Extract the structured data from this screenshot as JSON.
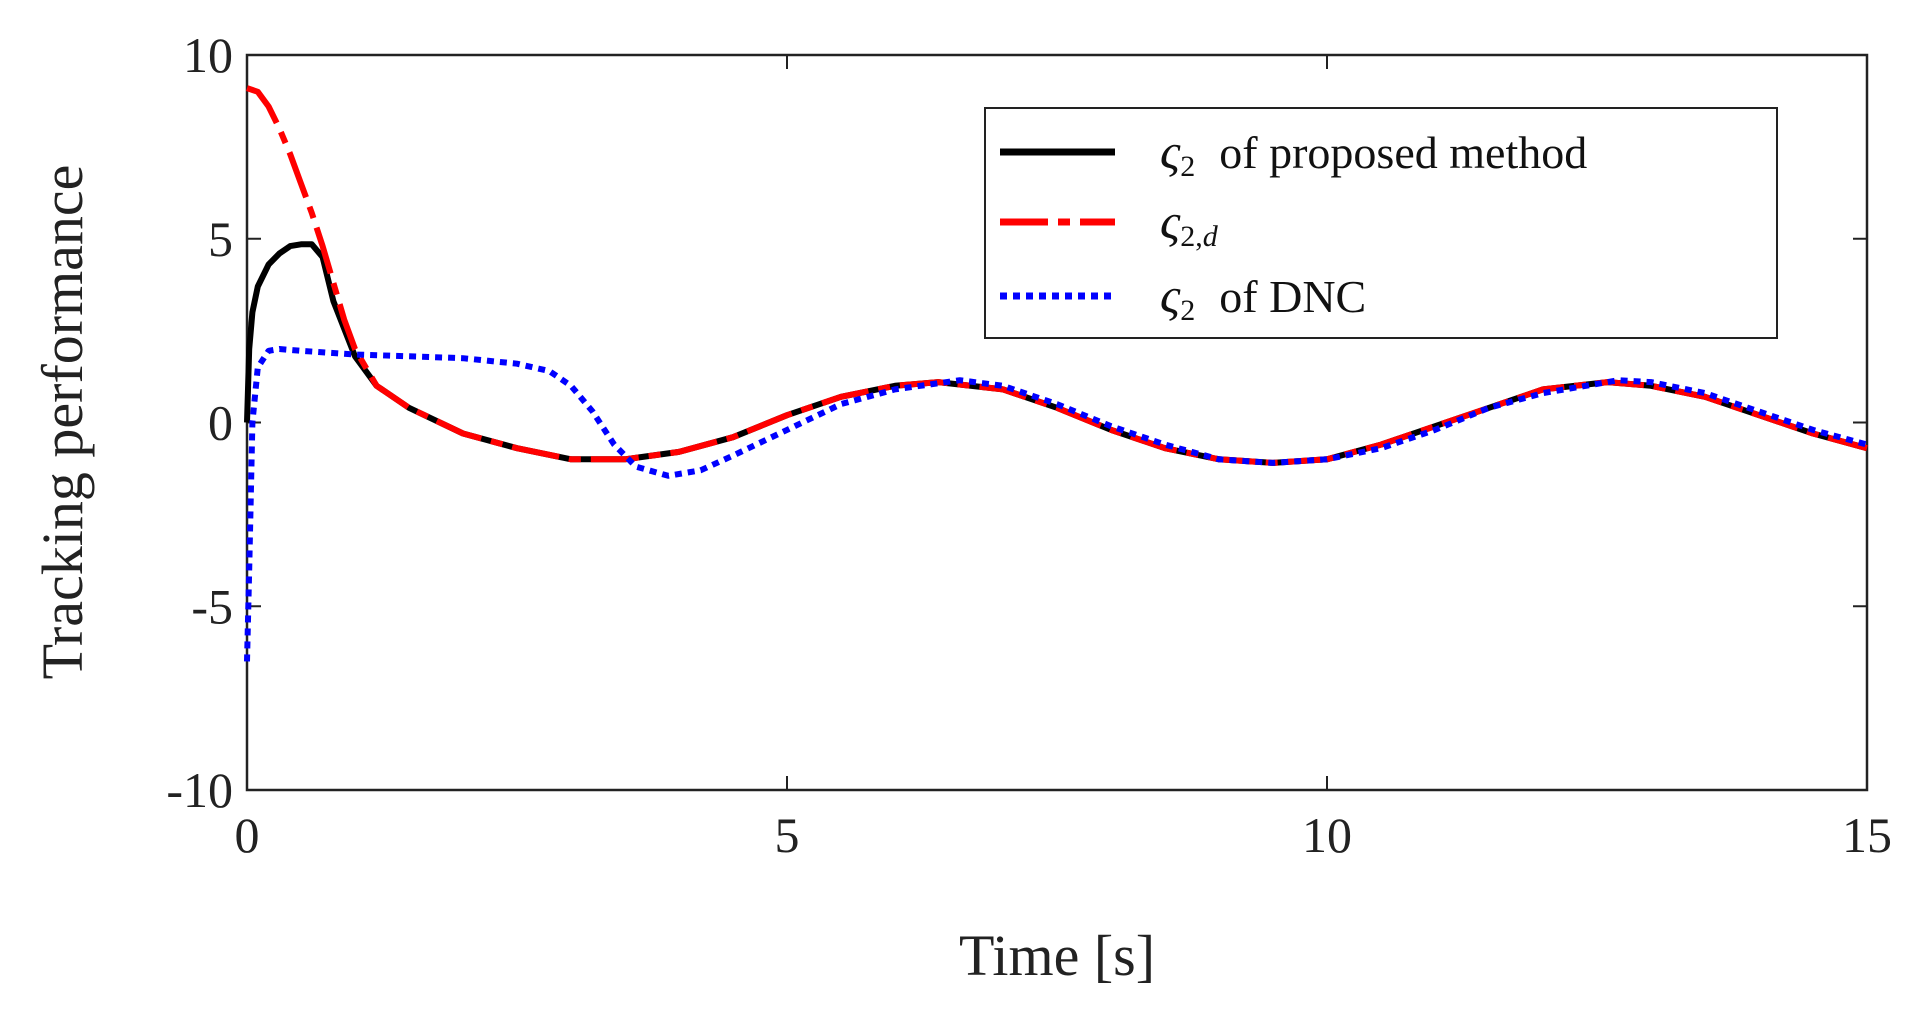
{
  "chart_data": {
    "type": "line",
    "title": "",
    "xlabel": "Time [s]",
    "ylabel": "Tracking performance",
    "xlim": [
      0,
      15
    ],
    "ylim": [
      -10,
      10
    ],
    "xticks": [
      0,
      5,
      10,
      15
    ],
    "yticks": [
      -10,
      -5,
      0,
      5,
      10
    ],
    "xtick_labels": [
      "0",
      "5",
      "10",
      "15"
    ],
    "ytick_labels": [
      "-10",
      "-5",
      "0",
      "5",
      "10"
    ],
    "grid": false,
    "legend_position": "top-right",
    "series": [
      {
        "name": "ς2 of proposed method",
        "symbol": "ς",
        "subscript": "2",
        "label_text": "of proposed method",
        "color": "#000000",
        "style": "solid",
        "x": [
          0,
          0.02,
          0.05,
          0.1,
          0.2,
          0.3,
          0.4,
          0.5,
          0.6,
          0.7,
          0.8,
          1.0,
          1.2,
          1.5,
          2.0,
          2.5,
          3.0,
          3.5,
          4.0,
          4.5,
          5.0,
          5.5,
          6.0,
          6.4,
          7.0,
          7.5,
          8.0,
          8.5,
          9.0,
          9.5,
          10.0,
          10.5,
          11.0,
          11.5,
          12.0,
          12.6,
          13.0,
          13.5,
          14.0,
          14.5,
          15.0
        ],
        "y": [
          0,
          2.0,
          3.0,
          3.7,
          4.3,
          4.6,
          4.8,
          4.85,
          4.85,
          4.5,
          3.3,
          1.8,
          1.0,
          0.4,
          -0.3,
          -0.7,
          -1.0,
          -1.0,
          -0.8,
          -0.4,
          0.2,
          0.7,
          1.0,
          1.1,
          0.9,
          0.4,
          -0.2,
          -0.7,
          -1.0,
          -1.1,
          -1.0,
          -0.6,
          -0.1,
          0.4,
          0.9,
          1.1,
          1.0,
          0.7,
          0.2,
          -0.3,
          -0.7
        ]
      },
      {
        "name": "ς2,d",
        "symbol": "ς",
        "subscript": "2,",
        "subscript_italic": "d",
        "label_text": "",
        "color": "#ff0000",
        "style": "dashdot",
        "x": [
          0,
          0.1,
          0.2,
          0.3,
          0.4,
          0.5,
          0.6,
          0.7,
          0.8,
          0.9,
          1.0,
          1.2,
          1.5,
          2.0,
          2.5,
          3.0,
          3.5,
          4.0,
          4.5,
          5.0,
          5.5,
          6.0,
          6.4,
          7.0,
          7.5,
          8.0,
          8.5,
          9.0,
          9.5,
          10.0,
          10.5,
          11.0,
          11.5,
          12.0,
          12.6,
          13.0,
          13.5,
          14.0,
          14.5,
          15.0
        ],
        "y": [
          9.1,
          9.0,
          8.6,
          8.0,
          7.3,
          6.5,
          5.7,
          4.8,
          3.8,
          2.8,
          2.0,
          1.0,
          0.4,
          -0.3,
          -0.7,
          -1.0,
          -1.0,
          -0.8,
          -0.4,
          0.2,
          0.7,
          1.0,
          1.1,
          0.9,
          0.4,
          -0.2,
          -0.7,
          -1.0,
          -1.1,
          -1.0,
          -0.6,
          -0.1,
          0.4,
          0.9,
          1.1,
          1.0,
          0.7,
          0.2,
          -0.3,
          -0.7
        ]
      },
      {
        "name": "ς2 of DNC",
        "symbol": "ς",
        "subscript": "2",
        "label_text": "of DNC",
        "color": "#0000ff",
        "style": "dotted",
        "x": [
          0,
          0.02,
          0.05,
          0.1,
          0.2,
          0.3,
          0.5,
          1.0,
          1.5,
          2.0,
          2.5,
          2.8,
          3.0,
          3.2,
          3.4,
          3.6,
          3.9,
          4.2,
          4.5,
          5.0,
          5.5,
          6.0,
          6.6,
          7.0,
          7.5,
          8.0,
          8.5,
          9.0,
          9.5,
          10.0,
          10.5,
          11.0,
          11.5,
          12.0,
          12.7,
          13.0,
          13.5,
          14.0,
          14.5,
          15.0
        ],
        "y": [
          -6.5,
          -4.0,
          0.0,
          1.5,
          1.95,
          2.0,
          1.95,
          1.85,
          1.8,
          1.75,
          1.6,
          1.4,
          1.0,
          0.3,
          -0.6,
          -1.2,
          -1.45,
          -1.3,
          -0.9,
          -0.2,
          0.5,
          0.9,
          1.15,
          1.0,
          0.5,
          -0.1,
          -0.6,
          -1.0,
          -1.1,
          -1.0,
          -0.7,
          -0.2,
          0.4,
          0.8,
          1.15,
          1.1,
          0.8,
          0.3,
          -0.2,
          -0.6
        ]
      }
    ]
  }
}
